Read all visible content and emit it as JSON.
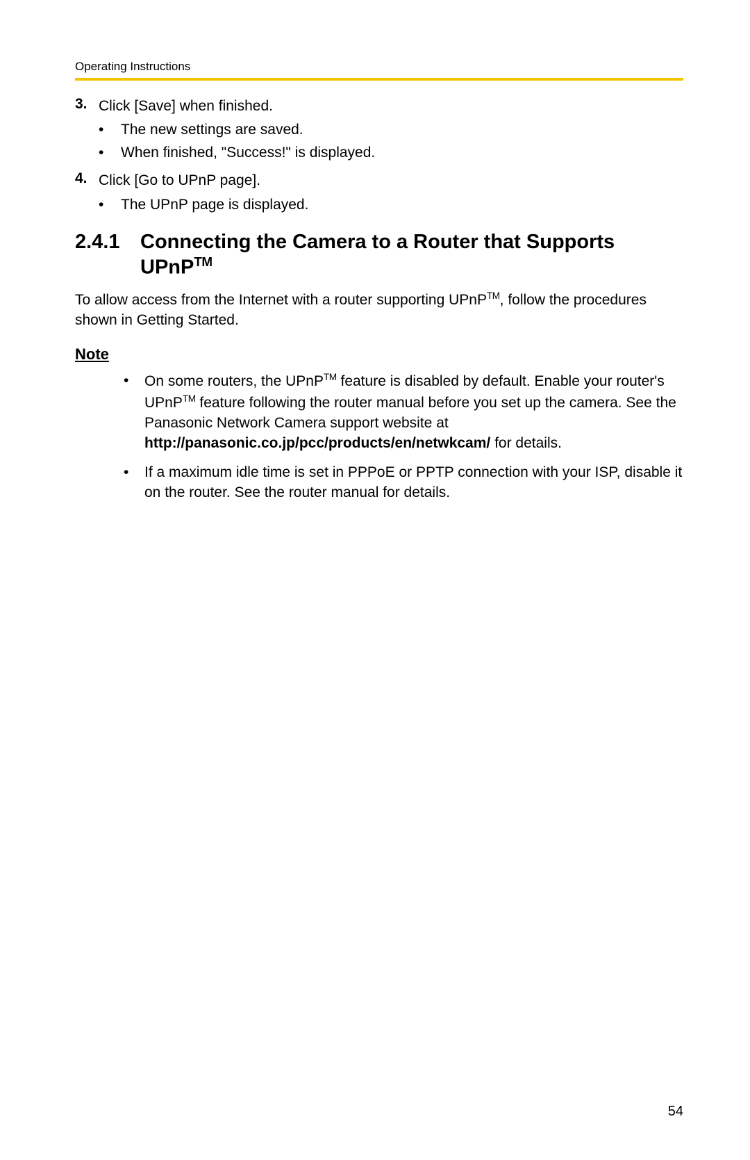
{
  "header": {
    "label": "Operating Instructions"
  },
  "accent_color": "#f2c400",
  "steps": [
    {
      "num": "3.",
      "text": "Click [Save] when finished.",
      "subs": [
        "The new settings are saved.",
        "When finished, \"Success!\" is displayed."
      ]
    },
    {
      "num": "4.",
      "text": "Click [Go to UPnP page].",
      "subs": [
        "The UPnP page is displayed."
      ]
    }
  ],
  "section": {
    "num": "2.4.1",
    "title_pre": "Connecting the Camera to a Router that Supports UPnP",
    "tm": "TM"
  },
  "intro": {
    "pre": "To allow access from the Internet with a router supporting UPnP",
    "tm": "TM",
    "post": ", follow the procedures shown in Getting Started."
  },
  "note": {
    "label": "Note",
    "items": [
      {
        "pre": "On some routers, the UPnP",
        "tm1": "TM",
        "mid1": " feature is disabled by default. Enable your router's UPnP",
        "tm2": "TM",
        "mid2": " feature following the router manual before you set up the camera. See the Panasonic Network Camera support website at ",
        "bold": "http://panasonic.co.jp/pcc/products/en/netwkcam/",
        "post": " for details."
      },
      {
        "text": "If a maximum idle time is set in PPPoE or PPTP connection with your ISP, disable it on the router. See the router manual for details."
      }
    ]
  },
  "page_number": "54"
}
